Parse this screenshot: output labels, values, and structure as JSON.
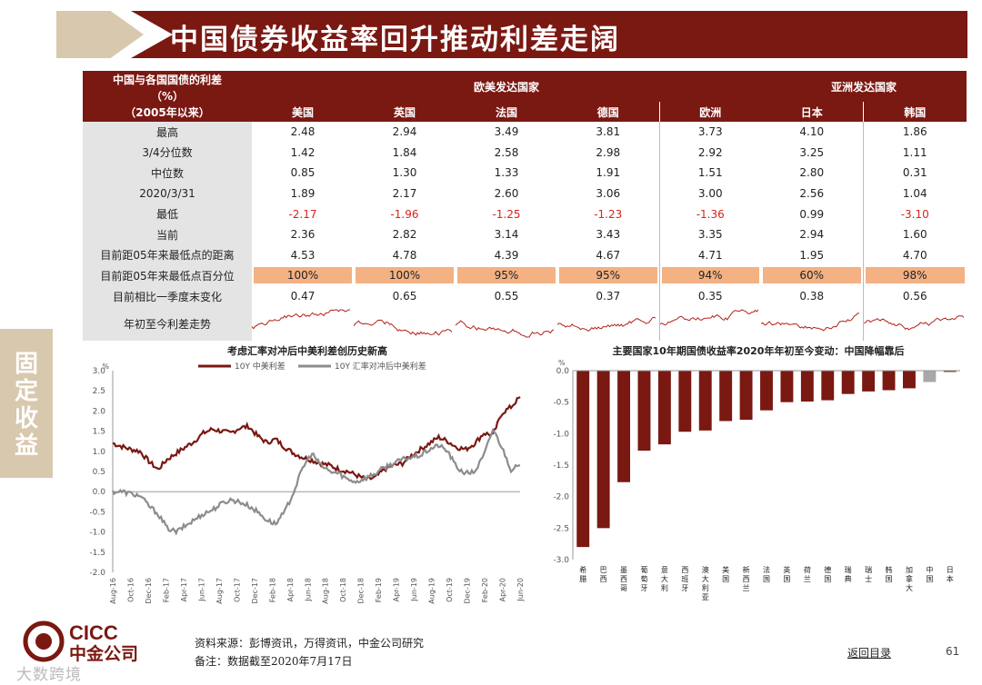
{
  "title": "中国债券收益率回升推动利差走阔",
  "side_tab": "固定收益",
  "table": {
    "header_label_lines": [
      "中国与各国国债的利差",
      "（%）",
      "（2005年以来）"
    ],
    "group_headers": [
      {
        "label": "欧美发达国家"
      },
      {
        "label": "亚洲发达国家"
      }
    ],
    "countries": [
      "美国",
      "英国",
      "法国",
      "德国",
      "欧洲",
      "日本",
      "韩国"
    ],
    "rows": [
      {
        "label": "最高",
        "values": [
          "2.48",
          "2.94",
          "3.49",
          "3.81",
          "3.73",
          "4.10",
          "1.86"
        ]
      },
      {
        "label": "3/4分位数",
        "values": [
          "1.42",
          "1.84",
          "2.58",
          "2.98",
          "2.92",
          "3.25",
          "1.11"
        ]
      },
      {
        "label": "中位数",
        "values": [
          "0.85",
          "1.30",
          "1.33",
          "1.91",
          "1.51",
          "2.80",
          "0.31"
        ]
      },
      {
        "label": "2020/3/31",
        "values": [
          "1.89",
          "2.17",
          "2.60",
          "3.06",
          "3.00",
          "2.56",
          "1.04"
        ]
      },
      {
        "label": "最低",
        "values": [
          "-2.17",
          "-1.96",
          "-1.25",
          "-1.23",
          "-1.36",
          "0.99",
          "-3.10"
        ],
        "negative": [
          true,
          true,
          true,
          true,
          true,
          false,
          true
        ]
      },
      {
        "label": "当前",
        "values": [
          "2.36",
          "2.82",
          "3.14",
          "3.43",
          "3.35",
          "2.94",
          "1.60"
        ]
      },
      {
        "label": "目前距05年来最低点的距离",
        "values": [
          "4.53",
          "4.78",
          "4.39",
          "4.67",
          "4.71",
          "1.95",
          "4.70"
        ]
      },
      {
        "label": "目前距05年来最低点百分位",
        "values": [
          "100%",
          "100%",
          "95%",
          "95%",
          "94%",
          "60%",
          "98%"
        ],
        "highlight": true
      },
      {
        "label": "目前相比一季度末变化",
        "values": [
          "0.47",
          "0.65",
          "0.55",
          "0.37",
          "0.35",
          "0.38",
          "0.56"
        ]
      }
    ],
    "spark_label": "年初至今利差走势"
  },
  "chart_data": [
    {
      "type": "line",
      "title": "考虑汇率对冲后中美利差创历史新高",
      "ylabel": "%",
      "ylim": [
        -2.0,
        3.0
      ],
      "yticks": [
        3.0,
        2.5,
        2.0,
        1.5,
        1.0,
        0.5,
        0.0,
        -0.5,
        -1.0,
        -1.5,
        -2.0
      ],
      "x_tick_labels": [
        "Aug-16",
        "Oct-16",
        "Dec-16",
        "Feb-17",
        "Apr-17",
        "Jun-17",
        "Aug-17",
        "Oct-17",
        "Dec-17",
        "Feb-18",
        "Apr-18",
        "Jun-18",
        "Aug-18",
        "Oct-18",
        "Dec-18",
        "Feb-19",
        "Apr-19",
        "Jun-19",
        "Aug-19",
        "Oct-19",
        "Dec-19",
        "Feb-20",
        "Apr-20",
        "Jun-20"
      ],
      "series": [
        {
          "name": "10Y 中美利差",
          "color": "#7a1812",
          "values": [
            1.2,
            1.12,
            1.05,
            1.0,
            0.75,
            0.55,
            0.8,
            0.95,
            1.1,
            1.25,
            1.45,
            1.55,
            1.5,
            1.45,
            1.58,
            1.62,
            1.38,
            1.22,
            1.3,
            1.1,
            0.95,
            0.85,
            0.78,
            0.7,
            0.65,
            0.55,
            0.5,
            0.4,
            0.3,
            0.35,
            0.55,
            0.65,
            0.7,
            0.9,
            1.05,
            1.2,
            1.35,
            1.25,
            1.1,
            1.05,
            1.2,
            1.45,
            1.4,
            1.95,
            2.1,
            2.35
          ]
        },
        {
          "name": "10Y 汇率对冲后中美利差",
          "color": "#8c8c8c",
          "values": [
            0.0,
            0.0,
            -0.05,
            -0.1,
            -0.35,
            -0.55,
            -0.9,
            -1.0,
            -0.85,
            -0.7,
            -0.55,
            -0.45,
            -0.3,
            -0.2,
            -0.25,
            -0.35,
            -0.5,
            -0.7,
            -0.8,
            -0.5,
            0.0,
            0.6,
            0.95,
            0.65,
            0.5,
            0.45,
            0.3,
            0.25,
            0.35,
            0.45,
            0.6,
            0.7,
            0.8,
            0.85,
            0.9,
            1.05,
            1.15,
            1.0,
            0.6,
            0.45,
            0.5,
            0.9,
            1.55,
            1.1,
            0.55,
            0.65
          ]
        }
      ]
    },
    {
      "type": "bar",
      "title": "主要国家10年期国债收益率2020年年初至今变动：中国降幅靠后",
      "ylabel": "%",
      "ylim": [
        -3.0,
        0.0
      ],
      "yticks": [
        0.0,
        -0.5,
        -1.0,
        -1.5,
        -2.0,
        -2.5,
        -3.0
      ],
      "categories": [
        "希腊",
        "巴西",
        "墨西哥",
        "葡萄牙",
        "意大利",
        "西班牙",
        "澳大利亚",
        "美国",
        "新西兰",
        "法国",
        "英国",
        "荷兰",
        "德国",
        "瑞典",
        "瑞士",
        "韩国",
        "加拿大",
        "中国",
        "日本"
      ],
      "values": [
        -2.8,
        -2.5,
        -1.77,
        -1.27,
        -1.17,
        -0.97,
        -0.95,
        -0.8,
        -0.78,
        -0.63,
        -0.5,
        -0.49,
        -0.47,
        -0.37,
        -0.33,
        -0.31,
        -0.28,
        -0.18,
        -0.02
      ],
      "color": "#7a1812",
      "highlight_category": "中国",
      "highlight_color": "#a8a8a8"
    }
  ],
  "footer": {
    "logo_text": "CICC",
    "logo_sub": "中金公司",
    "source": "资料来源：彭博资讯，万得资讯，中金公司研究",
    "note": "备注：数据截至2020年7月17日",
    "back_link": "返回目录",
    "page_number": "61",
    "watermark": "大数跨境"
  }
}
